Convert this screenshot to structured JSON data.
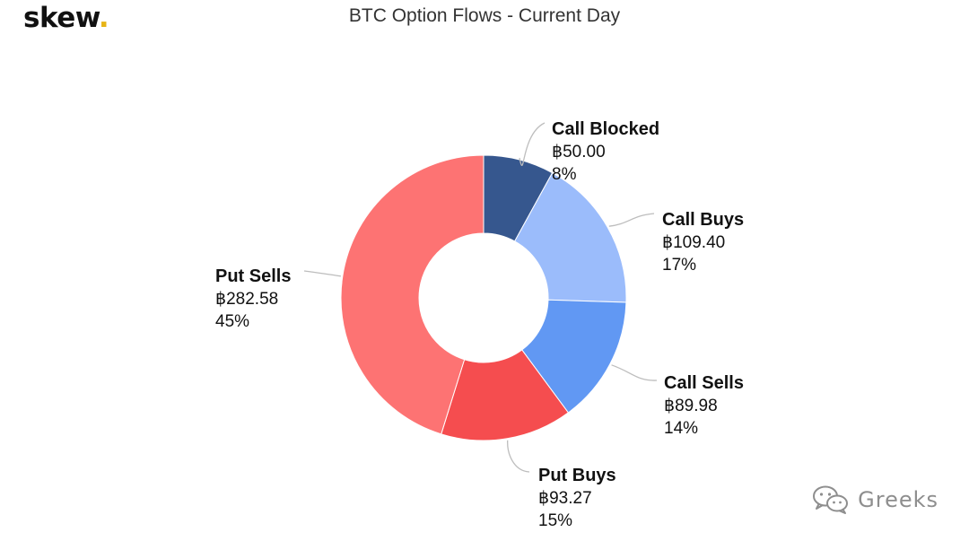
{
  "brand": {
    "logo_text": "skew",
    "logo_dot": ".",
    "logo_dot_color": "#e7b416"
  },
  "watermark": {
    "text": "Greeks",
    "icon": "wechat-icon"
  },
  "chart_data": {
    "type": "pie",
    "variant": "donut",
    "title": "BTC Option Flows - Current Day",
    "start_direction": "top",
    "clockwise": true,
    "slices": [
      {
        "label": "Call Blocked",
        "value": 50.0,
        "value_text": "฿50.00",
        "percent": 8,
        "percent_text": "8%",
        "color": "#36578e"
      },
      {
        "label": "Call Buys",
        "value": 109.4,
        "value_text": "฿109.40",
        "percent": 17,
        "percent_text": "17%",
        "color": "#9bbcfb"
      },
      {
        "label": "Call Sells",
        "value": 89.98,
        "value_text": "฿89.98",
        "percent": 14,
        "percent_text": "14%",
        "color": "#6198f3"
      },
      {
        "label": "Put Buys",
        "value": 93.27,
        "value_text": "฿93.27",
        "percent": 15,
        "percent_text": "15%",
        "color": "#f54d4f"
      },
      {
        "label": "Put Sells",
        "value": 282.58,
        "value_text": "฿282.58",
        "percent": 45,
        "percent_text": "45%",
        "color": "#fd7373"
      }
    ]
  }
}
